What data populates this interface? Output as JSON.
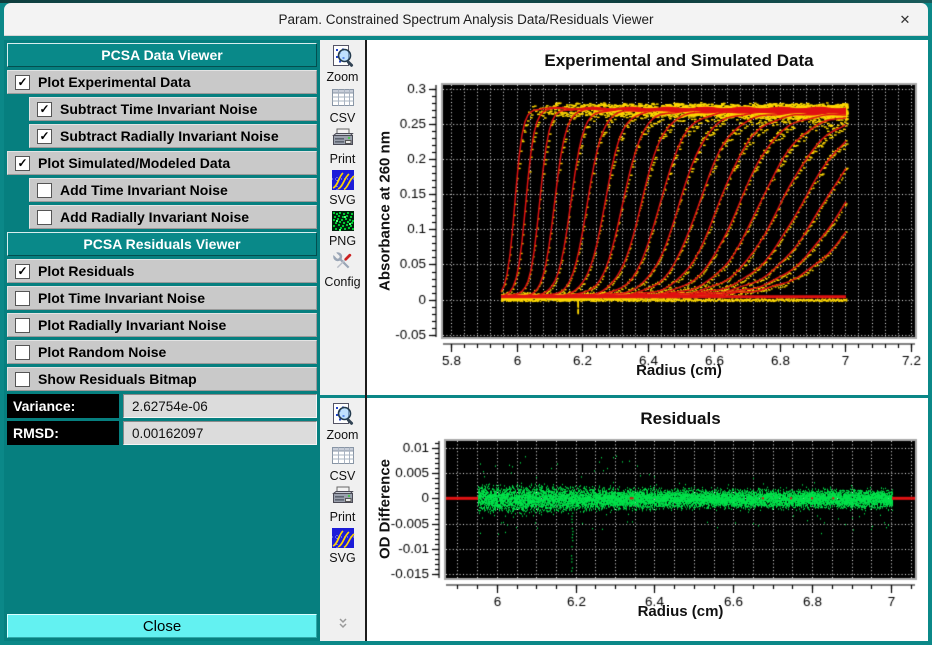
{
  "window": {
    "title": "Param. Constrained Spectrum Analysis Data/Residuals Viewer",
    "close_glyph": "✕"
  },
  "sidebar": {
    "sections": [
      {
        "header": "PCSA Data Viewer",
        "items": [
          {
            "label": "Plot Experimental Data",
            "checked": true,
            "indent": false
          },
          {
            "label": "Subtract Time Invariant Noise",
            "checked": true,
            "indent": true
          },
          {
            "label": "Subtract Radially Invariant Noise",
            "checked": true,
            "indent": true
          },
          {
            "label": "Plot Simulated/Modeled Data",
            "checked": true,
            "indent": false
          },
          {
            "label": "Add Time Invariant Noise",
            "checked": false,
            "indent": true
          },
          {
            "label": "Add Radially Invariant Noise",
            "checked": false,
            "indent": true
          }
        ]
      },
      {
        "header": "PCSA Residuals Viewer",
        "items": [
          {
            "label": "Plot Residuals",
            "checked": true,
            "indent": false
          },
          {
            "label": "Plot Time Invariant Noise",
            "checked": false,
            "indent": false
          },
          {
            "label": "Plot Radially Invariant Noise",
            "checked": false,
            "indent": false
          },
          {
            "label": "Plot Random Noise",
            "checked": false,
            "indent": false
          },
          {
            "label": "Show Residuals Bitmap",
            "checked": false,
            "indent": false
          }
        ]
      }
    ],
    "stats": [
      {
        "label": "Variance:",
        "value": "2.62754e-06"
      },
      {
        "label": "RMSD:",
        "value": "0.00162097"
      }
    ],
    "close_button": "Close"
  },
  "toolbars": {
    "top": {
      "buttons": [
        {
          "label": "Zoom",
          "icon": "zoom-magnifier"
        },
        {
          "label": "CSV",
          "icon": "csv-table"
        },
        {
          "label": "Print",
          "icon": "printer"
        },
        {
          "label": "SVG",
          "icon": "svg-plot-thumbnail"
        },
        {
          "label": "PNG",
          "icon": "png-bitmap-thumbnail"
        },
        {
          "label": "Config",
          "icon": "config-tools"
        }
      ]
    },
    "bottom": {
      "buttons": [
        {
          "label": "Zoom",
          "icon": "zoom-magnifier"
        },
        {
          "label": "CSV",
          "icon": "csv-table"
        },
        {
          "label": "Print",
          "icon": "printer"
        },
        {
          "label": "SVG",
          "icon": "svg-plot-thumbnail"
        }
      ],
      "overflow_indicator": "chevrons-down"
    }
  },
  "colors": {
    "window_frame": "#0b8888",
    "sidebar_bg": "#067f7f",
    "section_header_bg": "#098989",
    "row_bg": "#c9c9c9",
    "close_button_bg": "#63f1f1",
    "toolbar_bg": "#f0f0f0",
    "titlebar_bg": "#f3f3f3",
    "plot_bg": "#000000",
    "grid": "#ffffff",
    "experimental_yellow": "#ffd900",
    "simulated_red": "#e01212",
    "residual_green": "#00e24a"
  },
  "chart_data": [
    {
      "type": "line",
      "title": "Experimental and Simulated Data",
      "xlabel": "Radius (cm)",
      "ylabel": "Absorbance at 260 nm",
      "xlim": [
        5.776,
        7.212
      ],
      "ylim": [
        -0.053,
        0.305
      ],
      "x_ticks": [
        5.8,
        6,
        6.2,
        6.4,
        6.6,
        6.8,
        7,
        7.2
      ],
      "x_tick_labels": [
        "5.8",
        "6",
        "6.2",
        "6.4",
        "6.6",
        "6.8",
        "7",
        "7.2"
      ],
      "y_ticks": [
        0.3,
        0.25,
        0.2,
        0.15,
        0.1,
        0.05,
        0,
        -0.05
      ],
      "y_tick_labels": [
        "0.3",
        "0.25",
        "0.2",
        "0.15",
        "0.1",
        "0.05",
        "0",
        "-0.05"
      ],
      "x_minor": 0.04,
      "y_minor": 0.01,
      "grid": "white dotted on black",
      "legend": "none",
      "series": [
        {
          "name": "experimental scans (noisy)",
          "color": "#ffd900"
        },
        {
          "name": "simulated model overlay",
          "color": "#e01212"
        }
      ],
      "n_scans": 20,
      "data_range": [
        5.953,
        7.003
      ],
      "meniscus": 5.953,
      "plateau": 0.272,
      "baseline": 0.0048,
      "boundary_mid_start": 5.995,
      "boundary_mid_span": 1.065,
      "boundary_width_start": 0.012,
      "boundary_width_span": 0.085,
      "noise_amp": 0.0045,
      "spike_x": 6.185
    },
    {
      "type": "scatter",
      "title": "Residuals",
      "xlabel": "Radius (cm)",
      "ylabel": "OD Difference",
      "xlim": [
        5.871,
        7.061
      ],
      "ylim": [
        -0.0157,
        0.0113
      ],
      "x_ticks": [
        6,
        6.2,
        6.4,
        6.6,
        6.8,
        7
      ],
      "x_tick_labels": [
        "6",
        "6.2",
        "6.4",
        "6.6",
        "6.8",
        "7"
      ],
      "y_ticks": [
        0.01,
        0.005,
        0,
        -0.005,
        -0.01,
        -0.015
      ],
      "y_tick_labels": [
        "0.01",
        "0.005",
        "0",
        "-0.005",
        "-0.01",
        "-0.015"
      ],
      "x_minor": 0.05,
      "y_minor": 0.001,
      "grid": "white dotted on black",
      "legend": "none",
      "series": [
        {
          "name": "residuals",
          "color": "#00e24a"
        },
        {
          "name": "zero reference line",
          "color": "#e01212"
        }
      ],
      "data_range": [
        5.953,
        7.003
      ],
      "band_sigma": 0.00165,
      "spike_x": 6.19,
      "spike_min": -0.0145
    }
  ]
}
